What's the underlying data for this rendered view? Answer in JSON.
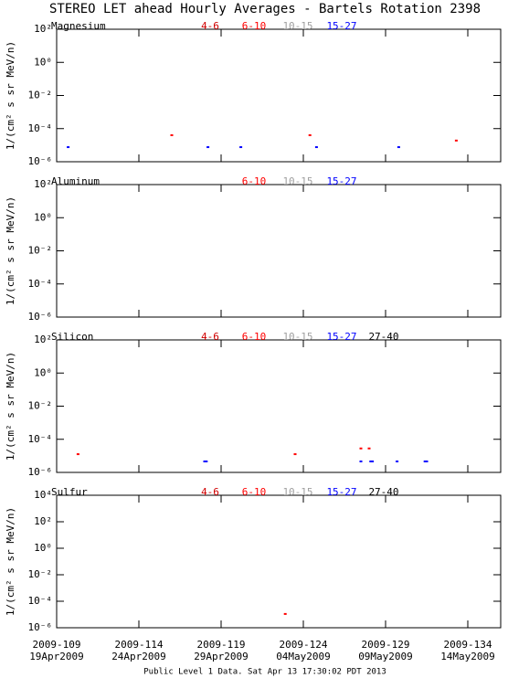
{
  "title": "STEREO LET ahead Hourly Averages - Bartels Rotation 2398",
  "footer": "Public Level 1 Data. Sat Apr 13 17:30:02 PDT 2013",
  "x_axis": {
    "xlim": [
      109,
      136
    ],
    "xticks": [
      {
        "value": 109,
        "label": "2009-109"
      },
      {
        "value": 114,
        "label": "2009-114"
      },
      {
        "value": 119,
        "label": "2009-119"
      },
      {
        "value": 124,
        "label": "2009-124"
      },
      {
        "value": 129,
        "label": "2009-129"
      },
      {
        "value": 134,
        "label": "2009-134"
      }
    ],
    "xtick_dates": [
      "19Apr2009",
      "24Apr2009",
      "29Apr2009",
      "04May2009",
      "09May2009",
      "14May2009"
    ]
  },
  "chart_data": [
    {
      "type": "scatter",
      "title": "Magnesium",
      "ylabel": "1/(cm² s sr MeV/n)",
      "log_y": true,
      "ylim": [
        1e-06,
        100
      ],
      "yticks": [
        {
          "value": 100,
          "label": "10²"
        },
        {
          "value": 1,
          "label": "10⁰"
        },
        {
          "value": 0.01,
          "label": "10⁻²"
        },
        {
          "value": 0.0001,
          "label": "10⁻⁴"
        },
        {
          "value": 1e-06,
          "label": "10⁻⁶"
        }
      ],
      "series": [
        {
          "name": "4-6",
          "color": "#d00000",
          "x": [],
          "values": []
        },
        {
          "name": "6-10",
          "color": "#ff0000",
          "x": [
            116.0,
            124.4,
            133.3
          ],
          "values": [
            4e-05,
            4e-05,
            1.9e-05
          ]
        },
        {
          "name": "10-15",
          "color": "#a0a0a0",
          "x": [],
          "values": []
        },
        {
          "name": "15-27",
          "color": "#0000ff",
          "x": [
            109.7,
            118.2,
            120.2,
            124.8,
            129.8
          ],
          "values": [
            7.6e-06,
            7.6e-06,
            7.6e-06,
            7.6e-06,
            7.6e-06
          ]
        }
      ]
    },
    {
      "type": "scatter",
      "title": "Aluminum",
      "ylabel": "1/(cm² s sr MeV/n)",
      "log_y": true,
      "ylim": [
        1e-06,
        100
      ],
      "yticks": [
        {
          "value": 100,
          "label": "10²"
        },
        {
          "value": 1,
          "label": "10⁰"
        },
        {
          "value": 0.01,
          "label": "10⁻²"
        },
        {
          "value": 0.0001,
          "label": "10⁻⁴"
        },
        {
          "value": 1e-06,
          "label": "10⁻⁶"
        }
      ],
      "series": [
        {
          "name": "6-10",
          "color": "#ff0000",
          "x": [],
          "values": []
        },
        {
          "name": "10-15",
          "color": "#a0a0a0",
          "x": [],
          "values": []
        },
        {
          "name": "15-27",
          "color": "#0000ff",
          "x": [],
          "values": []
        }
      ]
    },
    {
      "type": "scatter",
      "title": "Silicon",
      "ylabel": "1/(cm² s sr MeV/n)",
      "log_y": true,
      "ylim": [
        1e-06,
        100
      ],
      "yticks": [
        {
          "value": 100,
          "label": "10²"
        },
        {
          "value": 1,
          "label": "10⁰"
        },
        {
          "value": 0.01,
          "label": "10⁻²"
        },
        {
          "value": 0.0001,
          "label": "10⁻⁴"
        },
        {
          "value": 1e-06,
          "label": "10⁻⁶"
        }
      ],
      "series": [
        {
          "name": "4-6",
          "color": "#d00000",
          "x": [],
          "values": []
        },
        {
          "name": "6-10",
          "color": "#ff0000",
          "x": [
            110.3,
            123.5,
            127.5,
            128.0
          ],
          "values": [
            1.26e-05,
            1.26e-05,
            2.8e-05,
            2.8e-05
          ]
        },
        {
          "name": "10-15",
          "color": "#a0a0a0",
          "x": [],
          "values": []
        },
        {
          "name": "15-27",
          "color": "#0000ff",
          "x": [
            118.0,
            118.1,
            127.5,
            128.1,
            128.2,
            129.7,
            131.4,
            131.5
          ],
          "values": [
            4.6e-06,
            4.6e-06,
            4.6e-06,
            4.6e-06,
            4.6e-06,
            4.6e-06,
            4.6e-06,
            4.6e-06
          ]
        },
        {
          "name": "27-40",
          "color": "#000000",
          "x": [],
          "values": []
        }
      ]
    },
    {
      "type": "scatter",
      "title": "Sulfur",
      "ylabel": "1/(cm² s sr MeV/n)",
      "log_y": true,
      "ylim": [
        1e-06,
        10000
      ],
      "yticks": [
        {
          "value": 10000,
          "label": "10⁴"
        },
        {
          "value": 100,
          "label": "10²"
        },
        {
          "value": 1,
          "label": "10⁰"
        },
        {
          "value": 0.01,
          "label": "10⁻²"
        },
        {
          "value": 0.0001,
          "label": "10⁻⁴"
        },
        {
          "value": 1e-06,
          "label": "10⁻⁶"
        }
      ],
      "series": [
        {
          "name": "4-6",
          "color": "#d00000",
          "x": [],
          "values": []
        },
        {
          "name": "6-10",
          "color": "#ff0000",
          "x": [
            122.9
          ],
          "values": [
            1.1e-05
          ]
        },
        {
          "name": "10-15",
          "color": "#a0a0a0",
          "x": [],
          "values": []
        },
        {
          "name": "15-27",
          "color": "#0000ff",
          "x": [],
          "values": []
        },
        {
          "name": "27-40",
          "color": "#000000",
          "x": [],
          "values": []
        }
      ]
    }
  ]
}
